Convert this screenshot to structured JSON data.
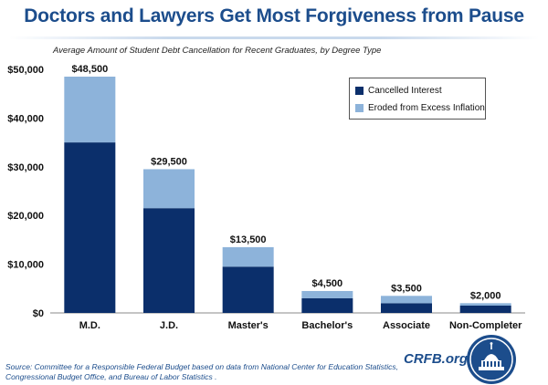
{
  "header": {
    "title": "Doctors and Lawyers Get Most Forgiveness from Pause",
    "subtitle": "Average Amount of Student Debt Cancellation for Recent Graduates, by Degree Type"
  },
  "chart_data": {
    "type": "bar",
    "stacked": true,
    "title": "Doctors and Lawyers Get Most Forgiveness from Pause",
    "subtitle": "Average Amount of Student Debt Cancellation for Recent Graduates, by Degree Type",
    "xlabel": "",
    "ylabel": "",
    "ylim": [
      0,
      50000
    ],
    "yticks": [
      0,
      10000,
      20000,
      30000,
      40000,
      50000
    ],
    "ytick_labels": [
      "$0",
      "$10,000",
      "$20,000",
      "$30,000",
      "$40,000",
      "$50,000"
    ],
    "categories": [
      "M.D.",
      "J.D.",
      "Master's",
      "Bachelor's",
      "Associate",
      "Non-Completer"
    ],
    "series": [
      {
        "name": "Cancelled Interest",
        "values": [
          35000,
          21500,
          9500,
          3000,
          2000,
          1500
        ],
        "color": "#0b2f6b"
      },
      {
        "name": "Eroded from Excess Inflation",
        "values": [
          13500,
          8000,
          4000,
          1500,
          1500,
          500
        ],
        "color": "#8db3da"
      }
    ],
    "totals": [
      48500,
      29500,
      13500,
      4500,
      3500,
      2000
    ],
    "total_labels": [
      "$48,500",
      "$29,500",
      "$13,500",
      "$4,500",
      "$3,500",
      "$2,000"
    ],
    "legend_position": "top-right",
    "grid": false
  },
  "legend": {
    "items": [
      {
        "label": "Cancelled Interest",
        "color": "#0b2f6b"
      },
      {
        "label": "Eroded from Excess Inflation",
        "color": "#8db3da"
      }
    ]
  },
  "footer": {
    "source": "Source: Committee for a Responsible Federal Budget based on data from National Center for Education Statistics, Congressional Budget Office, and Bureau of Labor Statistics .",
    "brand": "CRFB.org"
  },
  "colors": {
    "accent": "#1c4d8c"
  }
}
